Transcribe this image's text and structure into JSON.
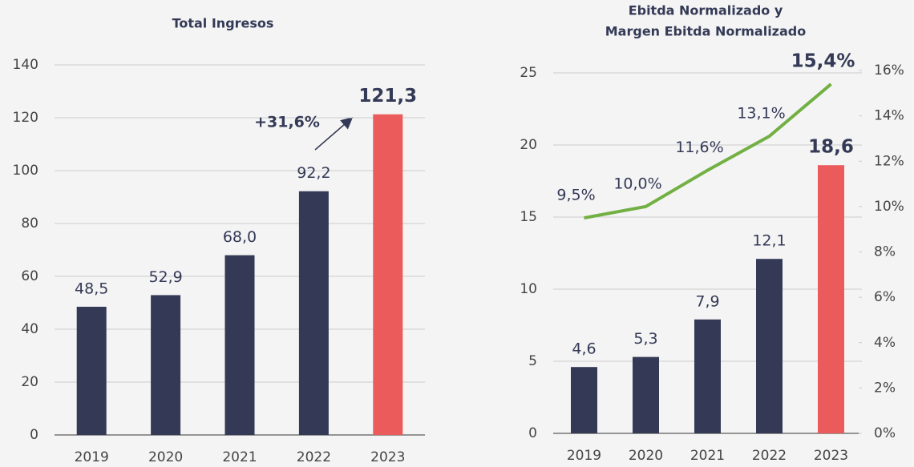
{
  "chart_data": [
    {
      "type": "bar",
      "title": [
        "Total Ingresos"
      ],
      "categories": [
        "2019",
        "2020",
        "2021",
        "2022",
        "2023"
      ],
      "values": [
        48.5,
        52.9,
        68.0,
        92.2,
        121.3
      ],
      "value_labels": [
        "48,5",
        "52,9",
        "68,0",
        "92,2",
        "121,3"
      ],
      "colors": [
        "#343a56",
        "#343a56",
        "#343a56",
        "#343a56",
        "#eb5b5b"
      ],
      "ylim": [
        0,
        140
      ],
      "yticks": [
        0,
        20,
        40,
        60,
        80,
        100,
        120,
        140
      ],
      "grid": true,
      "annotation": "+31,6%"
    },
    {
      "type": "bar",
      "title": [
        "Ebitda Normalizado y",
        "Margen Ebitda Normalizado"
      ],
      "categories": [
        "2019",
        "2020",
        "2021",
        "2022",
        "2023"
      ],
      "values": [
        4.6,
        5.3,
        7.9,
        12.1,
        18.6
      ],
      "value_labels": [
        "4,6",
        "5,3",
        "7,9",
        "12,1",
        "18,6"
      ],
      "colors": [
        "#343a56",
        "#343a56",
        "#343a56",
        "#343a56",
        "#eb5b5b"
      ],
      "ylim": [
        0,
        25
      ],
      "yticks": [
        0,
        5,
        10,
        15,
        20,
        25
      ],
      "grid": true,
      "line": {
        "values": [
          9.5,
          10.0,
          11.6,
          13.1,
          15.4
        ],
        "value_labels": [
          "9,5%",
          "10,0%",
          "11,6%",
          "13,1%",
          "15,4%"
        ],
        "color": "#72b043",
        "axis": "y2"
      },
      "y2lim": [
        0,
        16
      ],
      "y2ticks": [
        {
          "value": 0,
          "label": "0%"
        },
        {
          "value": 2,
          "label": "2%"
        },
        {
          "value": 4,
          "label": "4%"
        },
        {
          "value": 6,
          "label": "6%"
        },
        {
          "value": 8,
          "label": "8%"
        },
        {
          "value": 10,
          "label": "10%"
        },
        {
          "value": 12,
          "label": "12%"
        },
        {
          "value": 14,
          "label": "14%"
        },
        {
          "value": 16,
          "label": "16%"
        }
      ]
    }
  ]
}
